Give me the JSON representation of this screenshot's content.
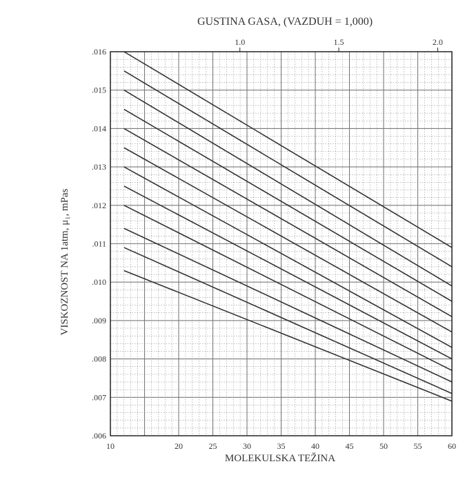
{
  "chart_data": {
    "type": "line",
    "title": "GUSTINA GASA, (VAZDUH = 1,000)",
    "xlabel": "MOLEKULSKA TEŽINA",
    "ylabel": "VISKOZNOST NA 1atm, μ₁, mPas",
    "xlim": [
      10,
      60
    ],
    "ylim": [
      0.006,
      0.016
    ],
    "x_ticks": [
      "10",
      "20",
      "25",
      "30",
      "35",
      "40",
      "45",
      "50",
      "55",
      "60"
    ],
    "x_tick_values": [
      10,
      20,
      25,
      30,
      35,
      40,
      45,
      50,
      55,
      60
    ],
    "y_ticks": [
      ".006",
      ".007",
      ".008",
      ".009",
      ".010",
      ".011",
      ".012",
      ".013",
      ".014",
      ".015",
      ".016"
    ],
    "y_tick_values": [
      0.006,
      0.007,
      0.008,
      0.009,
      0.01,
      0.011,
      0.012,
      0.013,
      0.014,
      0.015,
      0.016
    ],
    "top_axis": {
      "ticks": [
        "1.0",
        "1.5",
        "2.0"
      ],
      "tick_values": [
        1.0,
        1.5,
        2.0
      ],
      "mol_weight_per_unit": 28.96
    },
    "grid": true,
    "series": [
      {
        "x": [
          12,
          60
        ],
        "values": [
          0.016,
          0.0109
        ]
      },
      {
        "x": [
          12,
          60
        ],
        "values": [
          0.0155,
          0.0104
        ]
      },
      {
        "x": [
          12,
          60
        ],
        "values": [
          0.015,
          0.0099
        ]
      },
      {
        "x": [
          12,
          60
        ],
        "values": [
          0.0145,
          0.0095
        ]
      },
      {
        "x": [
          12,
          60
        ],
        "values": [
          0.014,
          0.0091
        ]
      },
      {
        "x": [
          12,
          60
        ],
        "values": [
          0.0135,
          0.0087
        ]
      },
      {
        "x": [
          12,
          60
        ],
        "values": [
          0.013,
          0.0083
        ]
      },
      {
        "x": [
          12,
          60
        ],
        "values": [
          0.0125,
          0.008
        ]
      },
      {
        "x": [
          12,
          60
        ],
        "values": [
          0.012,
          0.0077
        ]
      },
      {
        "x": [
          12,
          60
        ],
        "values": [
          0.0114,
          0.0074
        ]
      },
      {
        "x": [
          12,
          60
        ],
        "values": [
          0.0109,
          0.0071
        ]
      },
      {
        "x": [
          12,
          60
        ],
        "values": [
          0.0103,
          0.0069
        ]
      }
    ],
    "colors": {
      "line": "#333333",
      "grid": "#7a7a7a",
      "frame": "#222222"
    }
  }
}
